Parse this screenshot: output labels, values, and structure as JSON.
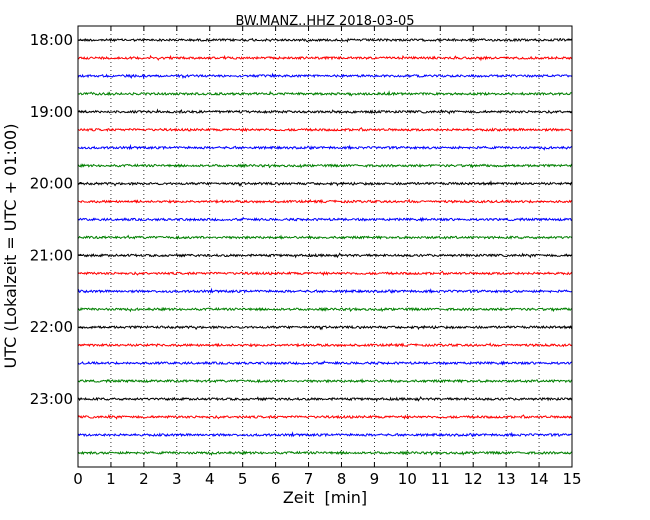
{
  "chart_data": {
    "type": "line",
    "title": "BW.MANZ..HHZ 2018-03-05",
    "xlabel": "Zeit  [min]",
    "ylabel": "UTC (Lokalzeit = UTC + 01:00)",
    "xlim": [
      0,
      15
    ],
    "x_ticks": [
      "0",
      "1",
      "2",
      "3",
      "4",
      "5",
      "6",
      "7",
      "8",
      "9",
      "10",
      "11",
      "12",
      "13",
      "14",
      "15"
    ],
    "y_tick_labels": [
      "18:00",
      "19:00",
      "20:00",
      "21:00",
      "22:00",
      "23:00"
    ],
    "trace_start_times": [
      "18:00",
      "18:15",
      "18:30",
      "18:45",
      "19:00",
      "19:15",
      "19:30",
      "19:45",
      "20:00",
      "20:15",
      "20:30",
      "20:45",
      "21:00",
      "21:15",
      "21:30",
      "21:45",
      "22:00",
      "22:15",
      "22:30",
      "22:45",
      "23:00",
      "23:15",
      "23:30",
      "23:45"
    ],
    "trace_color_cycle": [
      "#000000",
      "#ff0000",
      "#0000ff",
      "#008000"
    ],
    "grid": "vertical dotted at each minute"
  }
}
